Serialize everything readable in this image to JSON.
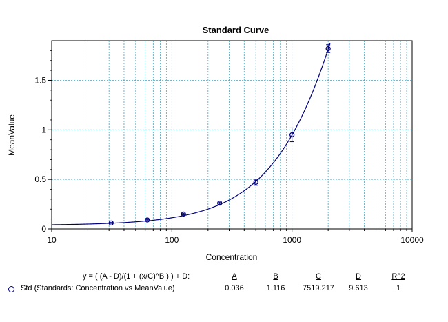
{
  "chart_data": {
    "type": "scatter",
    "title": "Standard Curve",
    "xlabel": "Concentration",
    "ylabel": "MeanValue",
    "xscale": "log",
    "xlim": [
      10,
      10000
    ],
    "ylim": [
      0,
      1.9
    ],
    "x_ticks": [
      10,
      100,
      1000,
      10000
    ],
    "x_tick_labels": [
      "10",
      "100",
      "1000",
      "10000"
    ],
    "y_ticks": [
      0,
      0.5,
      1,
      1.5
    ],
    "y_tick_labels": [
      "0",
      "0.5",
      "1",
      "1.5"
    ],
    "grid": true,
    "series": [
      {
        "name": "Std (Standards: Concentration vs MeanValue)",
        "x": [
          31.25,
          62.5,
          125,
          250,
          500,
          1000,
          2000
        ],
        "y": [
          0.06,
          0.09,
          0.15,
          0.26,
          0.47,
          0.95,
          1.82
        ],
        "y_err": [
          0.005,
          0.005,
          0.008,
          0.01,
          0.03,
          0.07,
          0.04
        ],
        "color": "#000080"
      }
    ],
    "fit": {
      "equation": "y = ( (A - D)/(1 + (x/C)^B ) ) + D:",
      "headers": [
        "A",
        "B",
        "C",
        "D",
        "R^2"
      ],
      "values": [
        "0.036",
        "1.116",
        "7519.217",
        "9.613",
        "1"
      ],
      "params": {
        "A": 0.036,
        "B": 1.116,
        "C": 7519.217,
        "D": 9.613
      },
      "color": "#000080"
    },
    "colors": {
      "grid": "#3aa7c8",
      "line": "#000080"
    }
  }
}
